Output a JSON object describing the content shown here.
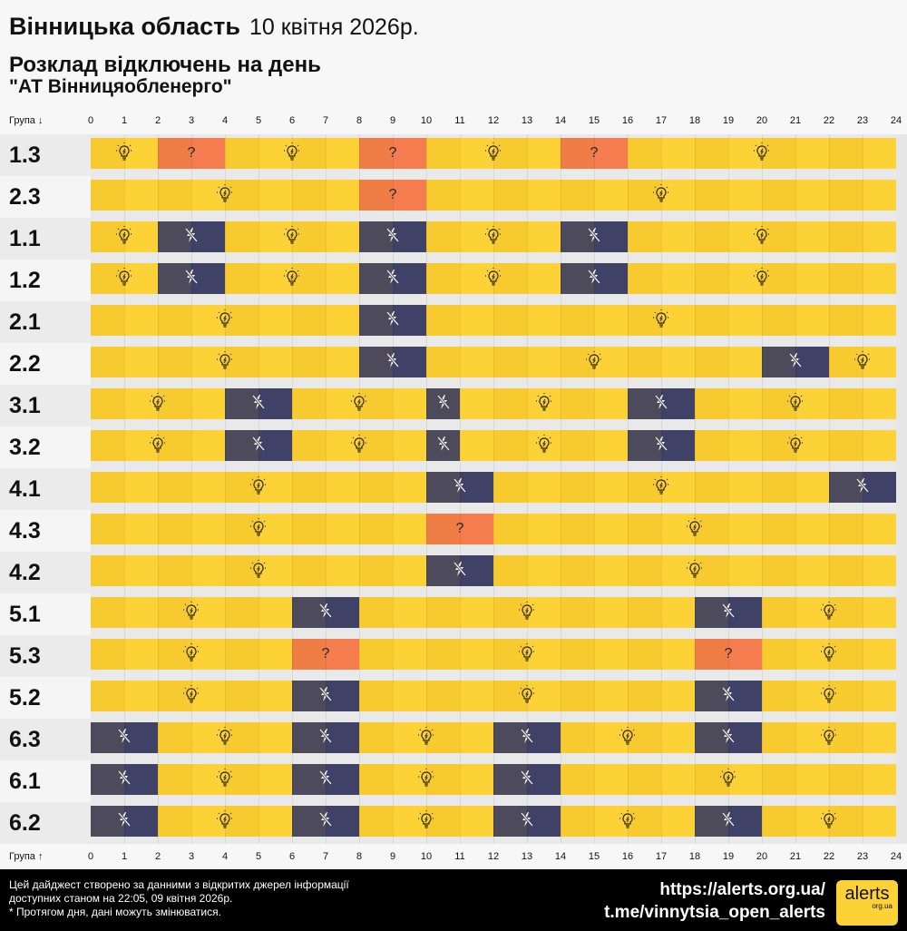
{
  "header": {
    "region": "Вінницька область",
    "date": "10 квітня 2026р.",
    "subtitle": "Розклад відключень на день",
    "company": "\"АТ Вінницяобленерго\""
  },
  "axis": {
    "top_label": "Група ↓",
    "bottom_label": "Група ↑",
    "hours": [
      "0",
      "1",
      "2",
      "3",
      "4",
      "5",
      "6",
      "7",
      "8",
      "9",
      "10",
      "11",
      "12",
      "13",
      "14",
      "15",
      "16",
      "17",
      "18",
      "19",
      "20",
      "21",
      "22",
      "23",
      "24"
    ]
  },
  "legend_icons": {
    "on": "lightbulb-icon",
    "off": "power-off-icon",
    "unk": "question-mark"
  },
  "colors": {
    "on": "#fdd236",
    "off": "#3f4266",
    "unk": "#f47c4f"
  },
  "rows": [
    {
      "name": "1.3",
      "segments": [
        [
          0,
          2,
          "on"
        ],
        [
          2,
          4,
          "unk"
        ],
        [
          4,
          8,
          "on"
        ],
        [
          8,
          10,
          "unk"
        ],
        [
          10,
          14,
          "on"
        ],
        [
          14,
          16,
          "unk"
        ],
        [
          16,
          24,
          "on"
        ]
      ]
    },
    {
      "name": "2.3",
      "segments": [
        [
          0,
          8,
          "on"
        ],
        [
          8,
          10,
          "unk"
        ],
        [
          10,
          24,
          "on"
        ]
      ]
    },
    {
      "name": "1.1",
      "segments": [
        [
          0,
          2,
          "on"
        ],
        [
          2,
          4,
          "off"
        ],
        [
          4,
          8,
          "on"
        ],
        [
          8,
          10,
          "off"
        ],
        [
          10,
          14,
          "on"
        ],
        [
          14,
          16,
          "off"
        ],
        [
          16,
          24,
          "on"
        ]
      ]
    },
    {
      "name": "1.2",
      "segments": [
        [
          0,
          2,
          "on"
        ],
        [
          2,
          4,
          "off"
        ],
        [
          4,
          8,
          "on"
        ],
        [
          8,
          10,
          "off"
        ],
        [
          10,
          14,
          "on"
        ],
        [
          14,
          16,
          "off"
        ],
        [
          16,
          24,
          "on"
        ]
      ]
    },
    {
      "name": "2.1",
      "segments": [
        [
          0,
          8,
          "on"
        ],
        [
          8,
          10,
          "off"
        ],
        [
          10,
          24,
          "on"
        ]
      ]
    },
    {
      "name": "2.2",
      "segments": [
        [
          0,
          8,
          "on"
        ],
        [
          8,
          10,
          "off"
        ],
        [
          10,
          20,
          "on"
        ],
        [
          20,
          22,
          "off"
        ],
        [
          22,
          24,
          "on"
        ]
      ]
    },
    {
      "name": "3.1",
      "segments": [
        [
          0,
          4,
          "on"
        ],
        [
          4,
          6,
          "off"
        ],
        [
          6,
          10,
          "on"
        ],
        [
          10,
          11,
          "off"
        ],
        [
          11,
          16,
          "on"
        ],
        [
          16,
          18,
          "off"
        ],
        [
          18,
          24,
          "on"
        ]
      ]
    },
    {
      "name": "3.2",
      "segments": [
        [
          0,
          4,
          "on"
        ],
        [
          4,
          6,
          "off"
        ],
        [
          6,
          10,
          "on"
        ],
        [
          10,
          11,
          "off"
        ],
        [
          11,
          16,
          "on"
        ],
        [
          16,
          18,
          "off"
        ],
        [
          18,
          24,
          "on"
        ]
      ]
    },
    {
      "name": "4.1",
      "segments": [
        [
          0,
          10,
          "on"
        ],
        [
          10,
          12,
          "off"
        ],
        [
          12,
          22,
          "on"
        ],
        [
          22,
          24,
          "off"
        ]
      ]
    },
    {
      "name": "4.3",
      "segments": [
        [
          0,
          10,
          "on"
        ],
        [
          10,
          12,
          "unk"
        ],
        [
          12,
          24,
          "on"
        ]
      ]
    },
    {
      "name": "4.2",
      "segments": [
        [
          0,
          10,
          "on"
        ],
        [
          10,
          12,
          "off"
        ],
        [
          12,
          24,
          "on"
        ]
      ]
    },
    {
      "name": "5.1",
      "segments": [
        [
          0,
          6,
          "on"
        ],
        [
          6,
          8,
          "off"
        ],
        [
          8,
          18,
          "on"
        ],
        [
          18,
          20,
          "off"
        ],
        [
          20,
          24,
          "on"
        ]
      ]
    },
    {
      "name": "5.3",
      "segments": [
        [
          0,
          6,
          "on"
        ],
        [
          6,
          8,
          "unk"
        ],
        [
          8,
          18,
          "on"
        ],
        [
          18,
          20,
          "unk"
        ],
        [
          20,
          24,
          "on"
        ]
      ]
    },
    {
      "name": "5.2",
      "segments": [
        [
          0,
          6,
          "on"
        ],
        [
          6,
          8,
          "off"
        ],
        [
          8,
          18,
          "on"
        ],
        [
          18,
          20,
          "off"
        ],
        [
          20,
          24,
          "on"
        ]
      ]
    },
    {
      "name": "6.3",
      "segments": [
        [
          0,
          2,
          "off"
        ],
        [
          2,
          6,
          "on"
        ],
        [
          6,
          8,
          "off"
        ],
        [
          8,
          12,
          "on"
        ],
        [
          12,
          14,
          "off"
        ],
        [
          14,
          18,
          "on"
        ],
        [
          18,
          20,
          "off"
        ],
        [
          20,
          24,
          "on"
        ]
      ]
    },
    {
      "name": "6.1",
      "segments": [
        [
          0,
          2,
          "off"
        ],
        [
          2,
          6,
          "on"
        ],
        [
          6,
          8,
          "off"
        ],
        [
          8,
          12,
          "on"
        ],
        [
          12,
          14,
          "off"
        ],
        [
          14,
          24,
          "on"
        ]
      ]
    },
    {
      "name": "6.2",
      "segments": [
        [
          0,
          2,
          "off"
        ],
        [
          2,
          6,
          "on"
        ],
        [
          6,
          8,
          "off"
        ],
        [
          8,
          12,
          "on"
        ],
        [
          12,
          14,
          "off"
        ],
        [
          14,
          18,
          "on"
        ],
        [
          18,
          20,
          "off"
        ],
        [
          20,
          24,
          "on"
        ]
      ]
    }
  ],
  "footer": {
    "note_line1": "Цей дайджест створено за данними з відкритих джерел інформації",
    "note_line2": "доступних станом на 22:05, 09 квітня 2026р.",
    "note_line3": "* Протягом дня, дані можуть змінюватися.",
    "link1": "https://alerts.org.ua/",
    "link2": "t.me/vinnytsia_open_alerts",
    "logo_text": "alerts",
    "logo_sub": "org.ua"
  }
}
